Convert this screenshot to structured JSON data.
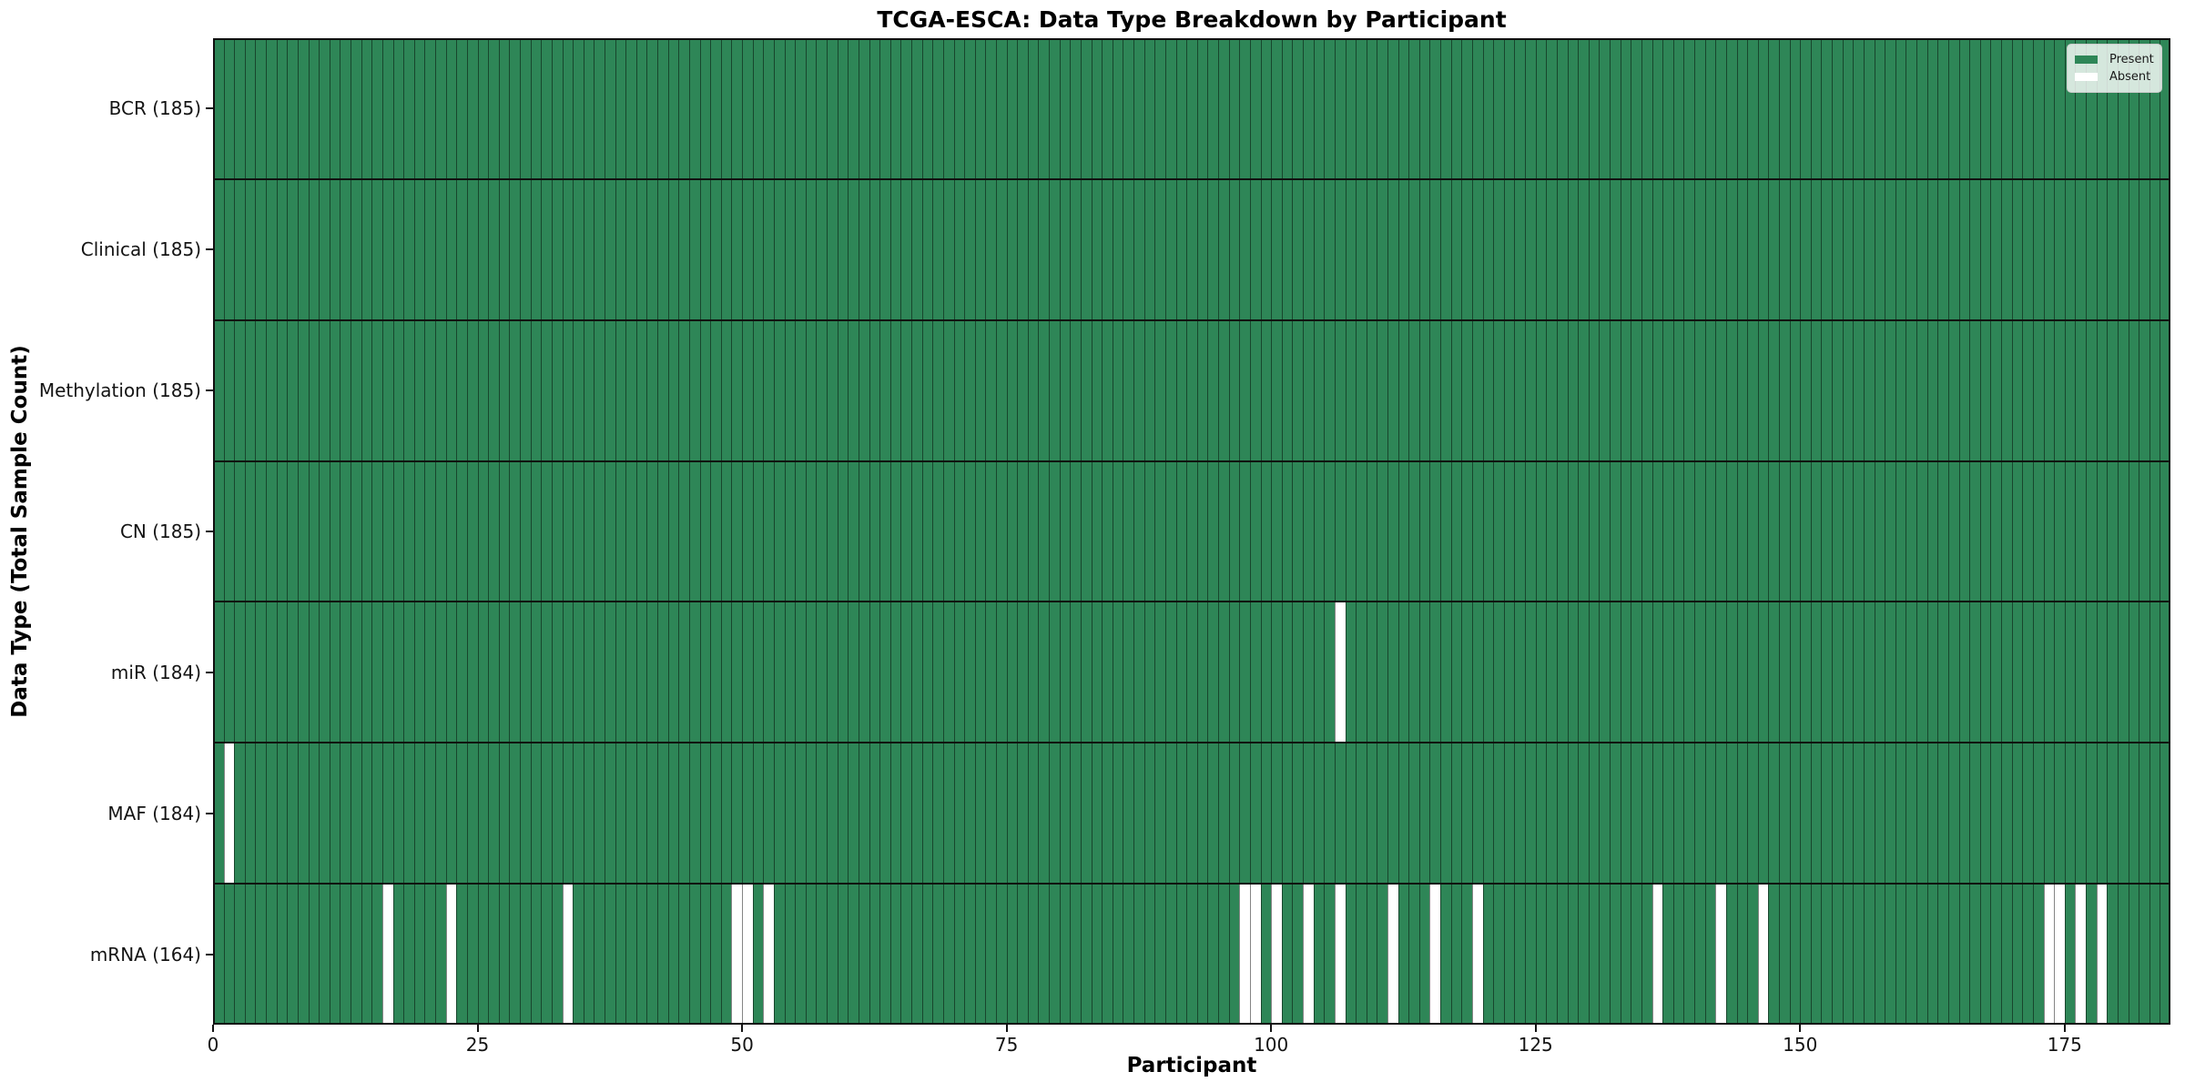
{
  "chart_data": {
    "type": "heatmap",
    "title": "TCGA-ESCA: Data Type Breakdown by Participant",
    "xlabel": "Participant",
    "ylabel": "Data Type (Total Sample Count)",
    "x_tick_labels": [
      "0",
      "25",
      "50",
      "75",
      "100",
      "125",
      "150",
      "175"
    ],
    "x_tick_values": [
      0,
      25,
      50,
      75,
      100,
      125,
      150,
      175
    ],
    "n_participants": 185,
    "x_range": [
      0,
      185
    ],
    "grid": true,
    "rows": [
      {
        "label": "BCR (185)",
        "total": 185,
        "absent_participants": []
      },
      {
        "label": "Clinical (185)",
        "total": 185,
        "absent_participants": []
      },
      {
        "label": "Methylation (185)",
        "total": 185,
        "absent_participants": []
      },
      {
        "label": "CN (185)",
        "total": 185,
        "absent_participants": []
      },
      {
        "label": "miR (184)",
        "total": 184,
        "absent_participants": [
          106
        ]
      },
      {
        "label": "MAF (184)",
        "total": 184,
        "absent_participants": [
          1
        ]
      },
      {
        "label": "mRNA (164)",
        "total": 164,
        "absent_participants": [
          16,
          22,
          33,
          49,
          50,
          52,
          97,
          98,
          100,
          103,
          106,
          111,
          115,
          119,
          136,
          142,
          146,
          173,
          174,
          176,
          178
        ]
      }
    ],
    "legend": {
      "position": "upper-right",
      "entries": [
        {
          "label": "Present",
          "color": "#2e8657"
        },
        {
          "label": "Absent",
          "color": "#ffffff"
        }
      ]
    },
    "colors": {
      "present": "#2e8657",
      "absent": "#ffffff",
      "gridline": "rgba(0,0,0,0.48)",
      "frame": "#101010"
    }
  }
}
